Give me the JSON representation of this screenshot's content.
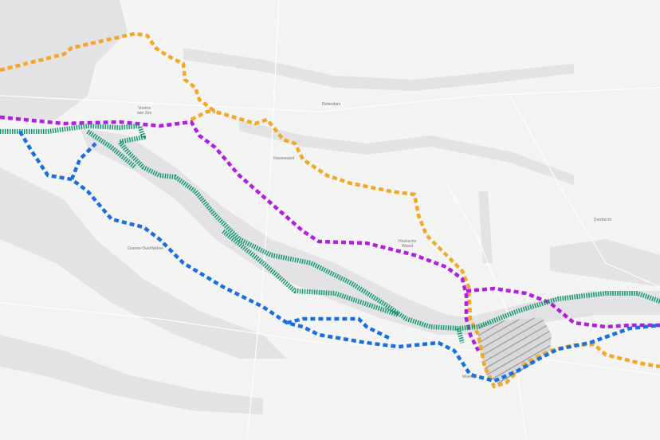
{
  "map": {
    "places": [
      {
        "name": "Voorne\naan Zee",
        "id": "voorne-aan-zee"
      },
      {
        "name": "Rotterdam",
        "id": "rotterdam"
      },
      {
        "name": "Nissewaard",
        "id": "nissewaard"
      },
      {
        "name": "Hoeksche\nWaard",
        "id": "hoeksche-waard"
      },
      {
        "name": "Dordrecht",
        "id": "dordrecht"
      },
      {
        "name": "Goeree-Overflakkee",
        "id": "goeree-overflakkee"
      },
      {
        "name": "Moerdijk",
        "id": "moerdijk"
      }
    ],
    "routes": [
      {
        "id": "orange-route",
        "color": "#f5a623",
        "style": "dashed"
      },
      {
        "id": "purple-route",
        "color": "#b21de0",
        "style": "dashed"
      },
      {
        "id": "green-route",
        "color": "#11966f",
        "style": "hatched"
      },
      {
        "id": "blue-route",
        "color": "#1a6fe0",
        "style": "dashed"
      }
    ],
    "colors": {
      "land": "#f4f4f5",
      "water": "#e2e2e4",
      "roads": "#ffffff"
    }
  }
}
